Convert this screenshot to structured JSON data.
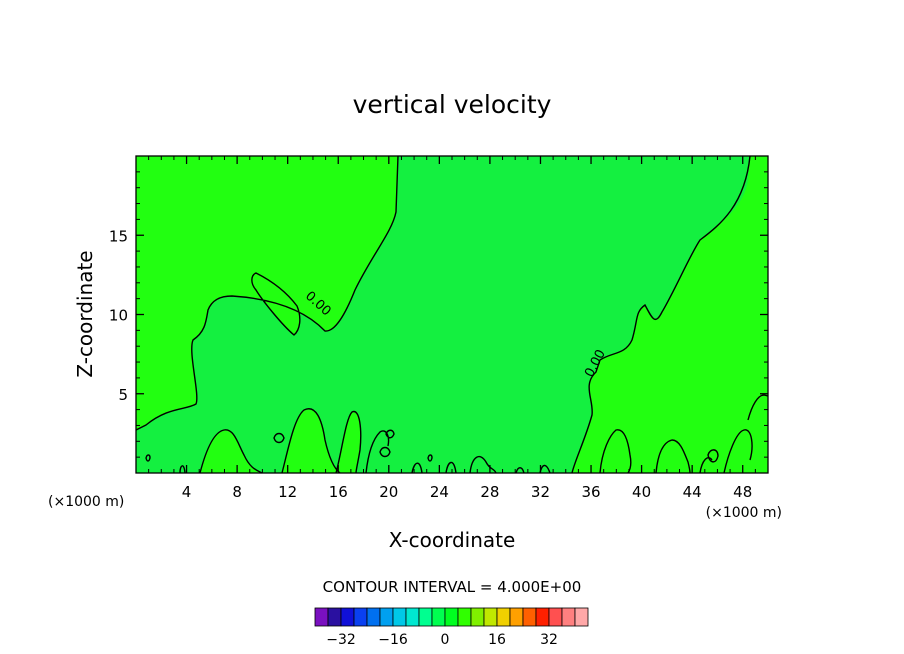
{
  "chart_data": {
    "type": "contour",
    "title": "vertical velocity",
    "xlabel": "X-coordinate",
    "ylabel": "Z-coordinate",
    "x_unit": "(×1000 m)",
    "x_unit_right": "(×1000 m)",
    "xlim": [
      0,
      50
    ],
    "ylim": [
      0,
      20
    ],
    "x_ticks": [
      4,
      8,
      12,
      16,
      20,
      24,
      28,
      32,
      36,
      40,
      44,
      48
    ],
    "y_ticks": [
      5,
      10,
      15
    ],
    "contour_labels": [
      {
        "text": "0.00",
        "x": 14.2,
        "y": 10.5,
        "angle": 42
      },
      {
        "text": "0.00",
        "x": 36.6,
        "y": 6.8,
        "angle": -62
      }
    ],
    "contour_interval_label": "CONTOUR INTERVAL = 4.000E+00",
    "colorbar": {
      "colors": [
        "#7a10c0",
        "#2a10a0",
        "#1010d8",
        "#0a40f0",
        "#0070f0",
        "#00a0f0",
        "#00c8e8",
        "#00e8d0",
        "#00ff90",
        "#00ff50",
        "#00ff20",
        "#30ff00",
        "#80f000",
        "#c0e800",
        "#f0d000",
        "#ffa000",
        "#ff6000",
        "#ff2000",
        "#ff5050",
        "#ff8080",
        "#ffa8a8"
      ],
      "tick_labels": [
        "-32",
        "-16",
        "0",
        "16",
        "32"
      ],
      "tick_values": [
        -32,
        -16,
        0,
        16,
        32
      ],
      "min": -40,
      "max": 44
    },
    "fill_colors": {
      "positive": "#22ff11",
      "near_zero": "#14f040"
    }
  }
}
